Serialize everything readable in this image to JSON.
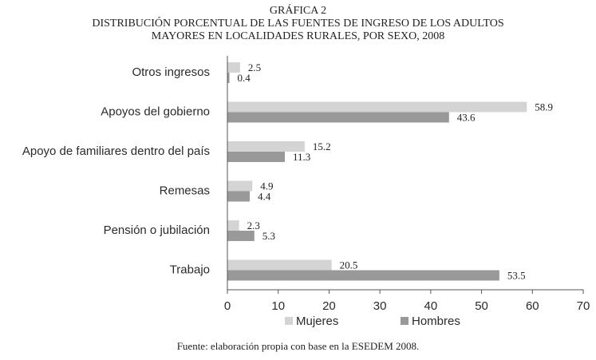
{
  "header": {
    "figure_number": "GRÁFICA 2",
    "title_line1": "DISTRIBUCIÓN PORCENTUAL DE LAS FUENTES DE INGRESO DE LOS ADULTOS",
    "title_line2": "MAYORES EN LOCALIDADES RURALES, POR SEXO, 2008"
  },
  "source_note": "Fuente: elaboración propia con base en la ESEDEM 2008.",
  "colors": {
    "mujeres": "#d4d4d4",
    "hombres": "#999999",
    "axis": "#555555"
  },
  "chart_data": {
    "type": "bar",
    "orientation": "horizontal",
    "title": "DISTRIBUCIÓN PORCENTUAL DE LAS FUENTES DE INGRESO DE LOS ADULTOS MAYORES EN LOCALIDADES RURALES, POR SEXO, 2008",
    "categories": [
      "Otros ingresos",
      "Apoyos del gobierno",
      "Apoyo de  familiares dentro del país",
      "Remesas",
      "Pensión o jubilación",
      "Trabajo"
    ],
    "series": [
      {
        "name": "Mujeres",
        "values": [
          2.5,
          58.9,
          15.2,
          4.9,
          2.3,
          20.5
        ],
        "labels": [
          "2.5",
          "58.9",
          "15.2",
          "4.9",
          "2.3",
          "20.5"
        ]
      },
      {
        "name": "Hombres",
        "values": [
          0.4,
          43.6,
          11.3,
          4.4,
          5.3,
          53.5
        ],
        "labels": [
          "0.4",
          "43.6",
          "11.3",
          "4.4",
          "5.3",
          "53.5"
        ]
      }
    ],
    "xlim": [
      0,
      70
    ],
    "xticks": [
      "0",
      "10",
      "20",
      "30",
      "40",
      "50",
      "60",
      "70"
    ],
    "xlabel": "",
    "ylabel": "",
    "grid": false,
    "legend_position": "bottom"
  }
}
